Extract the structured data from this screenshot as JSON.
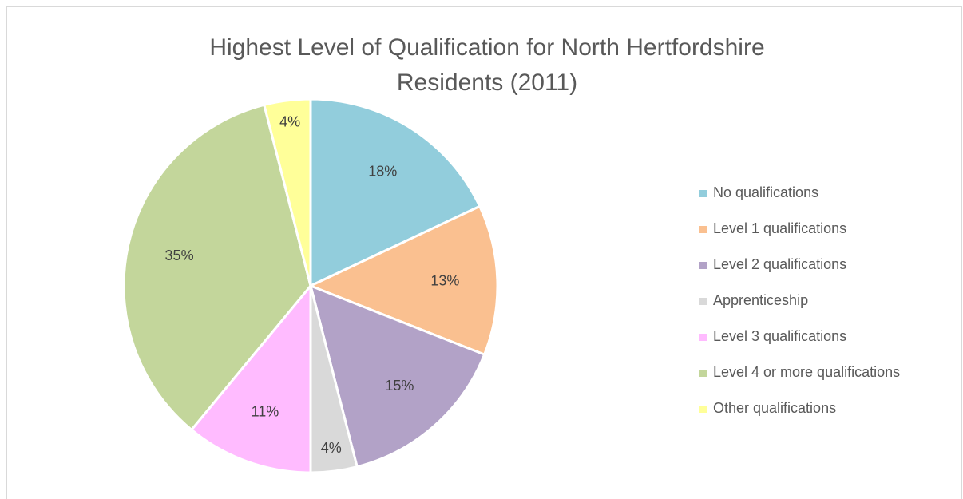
{
  "chart_data": {
    "type": "pie",
    "title": "Highest Level of Qualification for North Hertfordshire Residents (2011)",
    "categories": [
      "No qualifications",
      "Level 1 qualifications",
      "Level 2 qualifications",
      "Apprenticeship",
      "Level 3 qualifications",
      "Level 4 or more qualifications",
      "Other qualifications"
    ],
    "values": [
      18,
      13,
      15,
      4,
      11,
      35,
      4
    ],
    "value_labels": [
      "18%",
      "13%",
      "15%",
      "4%",
      "11%",
      "35%",
      "4%"
    ],
    "colors": [
      "#92cddc",
      "#fac090",
      "#b2a2c7",
      "#d9d9d9",
      "#ffbbff",
      "#c3d69b",
      "#ffff99"
    ],
    "legend": "right"
  }
}
